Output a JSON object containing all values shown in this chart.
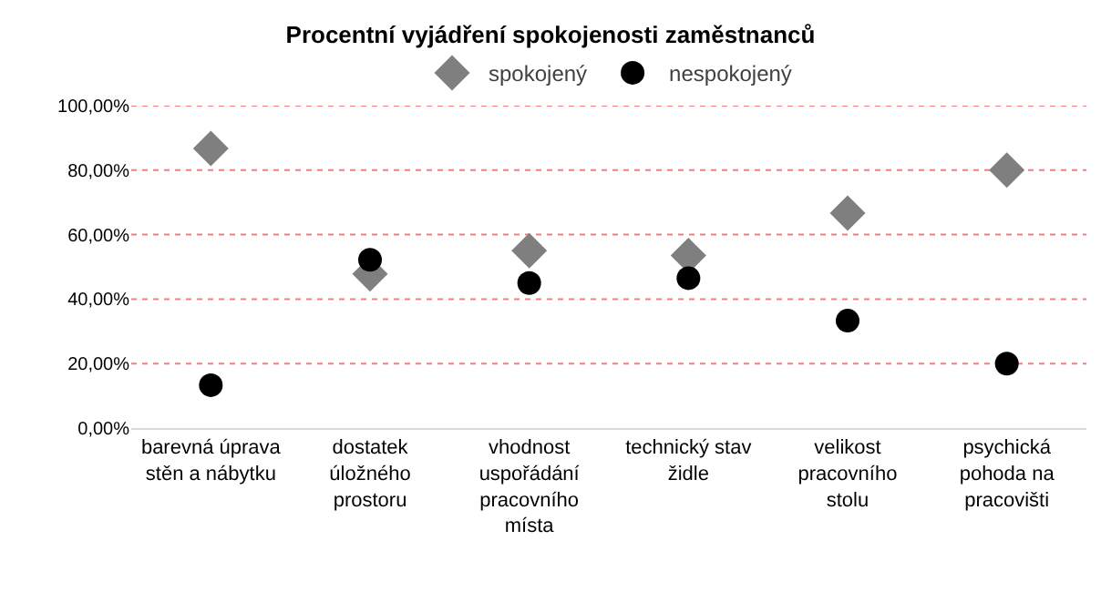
{
  "chart_data": {
    "type": "scatter",
    "title": "Procentní vyjádření spokojenosti zaměstnanců",
    "categories": [
      "barevná úprava stěn a nábytku",
      "dostatek úložného prostoru",
      "vhodnost uspořádání pracovního místa",
      "technický stav židle",
      "velikost pracovního stolu",
      "psychická pohoda na pracovišti"
    ],
    "series": [
      {
        "name": "spokojený",
        "color": "#7f7f7f",
        "marker": "diamond",
        "values": [
          86.7,
          47.8,
          55,
          53.5,
          66.7,
          80
        ]
      },
      {
        "name": "nespokojený",
        "color": "#000000",
        "marker": "circle",
        "values": [
          13.3,
          52.2,
          45,
          46.5,
          33.3,
          20
        ]
      }
    ],
    "ylim": [
      0,
      100
    ],
    "yticks": [
      {
        "value": 0,
        "label": "0,00%"
      },
      {
        "value": 20,
        "label": "20,00%"
      },
      {
        "value": 40,
        "label": "40,00%"
      },
      {
        "value": 60,
        "label": "60,00%"
      },
      {
        "value": 80,
        "label": "80,00%"
      },
      {
        "value": 100,
        "label": "100,00%"
      }
    ],
    "grid": "y",
    "legend": "top"
  }
}
